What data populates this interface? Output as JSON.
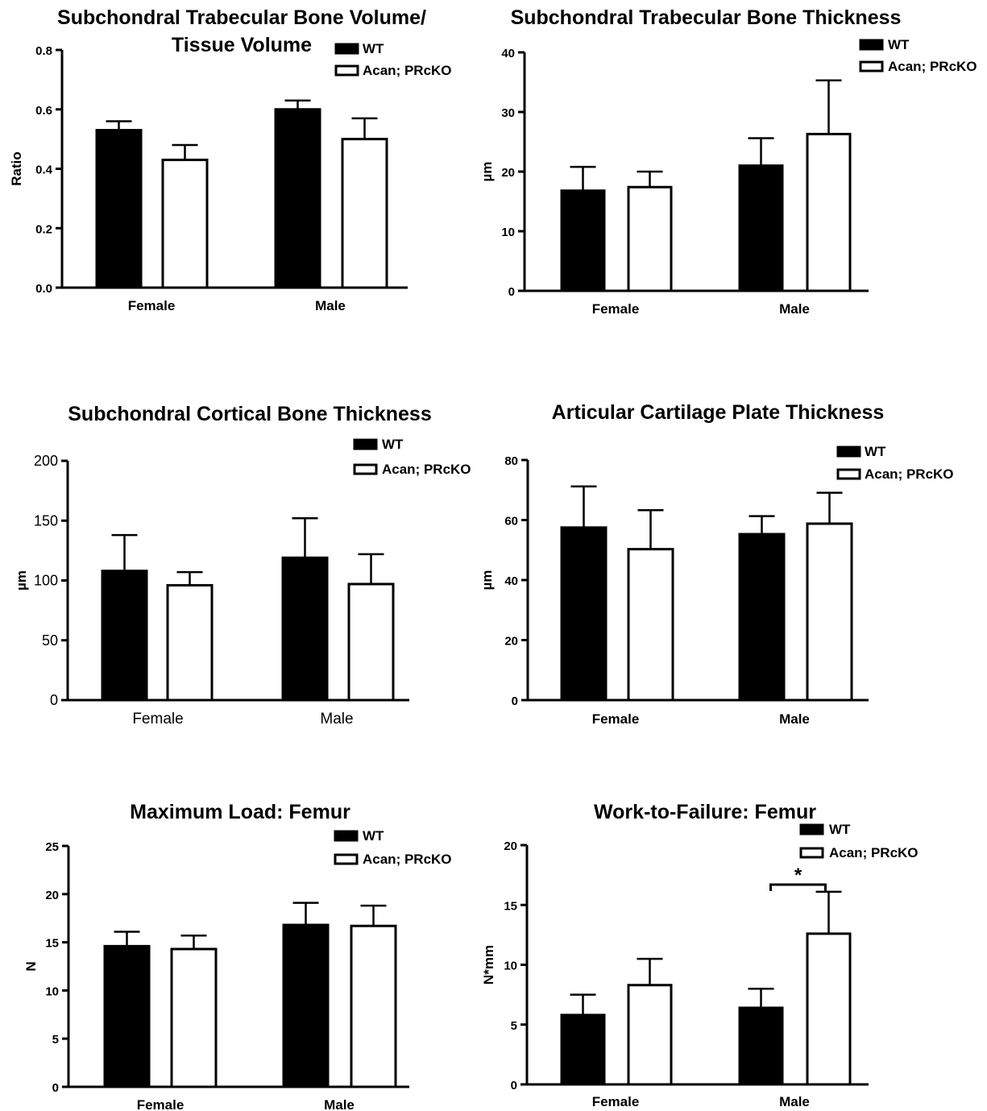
{
  "chart_data": [
    {
      "type": "bar",
      "title": [
        "Subchondral Trabecular Bone Volume/",
        "Tissue Volume"
      ],
      "ylabel": "Ratio",
      "categories": [
        "Female",
        "Male"
      ],
      "ylim": [
        0,
        0.8
      ],
      "yticks": [
        "0.0",
        "0.2",
        "0.4",
        "0.6",
        "0.8"
      ],
      "series": [
        {
          "name": "WT",
          "color": "#000000",
          "values": [
            0.53,
            0.6
          ],
          "errors": [
            0.03,
            0.03
          ]
        },
        {
          "name": "Acan; PRcKO",
          "color": "#ffffff",
          "values": [
            0.43,
            0.5
          ],
          "errors": [
            0.05,
            0.07
          ]
        }
      ],
      "legend": "top-right",
      "grid": false
    },
    {
      "type": "bar",
      "title": [
        "Subchondral Trabecular Bone Thickness"
      ],
      "ylabel": "µm",
      "categories": [
        "Female",
        "Male"
      ],
      "ylim": [
        0,
        40
      ],
      "yticks": [
        "0",
        "10",
        "20",
        "30",
        "40"
      ],
      "series": [
        {
          "name": "WT",
          "color": "#000000",
          "values": [
            16.8,
            21.0
          ],
          "errors": [
            4.0,
            4.6
          ]
        },
        {
          "name": "Acan; PRcKO",
          "color": "#ffffff",
          "values": [
            17.4,
            26.3
          ],
          "errors": [
            2.6,
            9.0
          ]
        }
      ],
      "legend": "top-right",
      "grid": false
    },
    {
      "type": "bar",
      "title": [
        "Subchondral Cortical Bone Thickness"
      ],
      "ylabel": "µm",
      "categories": [
        "Female",
        "Male"
      ],
      "ylim": [
        0,
        200
      ],
      "yticks": [
        "0",
        "50",
        "100",
        "150",
        "200"
      ],
      "series": [
        {
          "name": "WT",
          "color": "#000000",
          "values": [
            108,
            119
          ],
          "errors": [
            30,
            33
          ]
        },
        {
          "name": "Acan; PRcKO",
          "color": "#ffffff",
          "values": [
            96,
            97
          ],
          "errors": [
            11,
            25
          ]
        }
      ],
      "legend": "top-right",
      "grid": false
    },
    {
      "type": "bar",
      "title": [
        "Articular Cartilage Plate Thickness"
      ],
      "ylabel": "µm",
      "categories": [
        "Female",
        "Male"
      ],
      "ylim": [
        0,
        80
      ],
      "yticks": [
        "0",
        "20",
        "40",
        "60",
        "80"
      ],
      "series": [
        {
          "name": "WT",
          "color": "#000000",
          "values": [
            57.5,
            55.3
          ],
          "errors": [
            13.7,
            6.0
          ]
        },
        {
          "name": "Acan; PRcKO",
          "color": "#ffffff",
          "values": [
            50.3,
            58.8
          ],
          "errors": [
            13.0,
            10.3
          ]
        }
      ],
      "legend": "top-right",
      "grid": false
    },
    {
      "type": "bar",
      "title": [
        "Maximum Load: Femur"
      ],
      "ylabel": "N",
      "categories": [
        "Female",
        "Male"
      ],
      "ylim": [
        0,
        25
      ],
      "yticks": [
        "0",
        "5",
        "10",
        "15",
        "20",
        "25"
      ],
      "series": [
        {
          "name": "WT",
          "color": "#000000",
          "values": [
            14.6,
            16.8
          ],
          "errors": [
            1.5,
            2.3
          ]
        },
        {
          "name": "Acan; PRcKO",
          "color": "#ffffff",
          "values": [
            14.3,
            16.7
          ],
          "errors": [
            1.4,
            2.1
          ]
        }
      ],
      "legend": "top-right",
      "grid": false
    },
    {
      "type": "bar",
      "title": [
        "Work-to-Failure: Femur"
      ],
      "ylabel": "N*mm",
      "categories": [
        "Female",
        "Male"
      ],
      "ylim": [
        0,
        20
      ],
      "yticks": [
        "0",
        "5",
        "10",
        "15",
        "20"
      ],
      "series": [
        {
          "name": "WT",
          "color": "#000000",
          "values": [
            5.8,
            6.4
          ],
          "errors": [
            1.7,
            1.6
          ]
        },
        {
          "name": "Acan; PRcKO",
          "color": "#ffffff",
          "values": [
            8.3,
            12.6
          ],
          "errors": [
            2.2,
            3.5
          ]
        }
      ],
      "legend": "top-right",
      "grid": false,
      "annotations": [
        {
          "text": "*",
          "category": "Male",
          "between": [
            "WT",
            "Acan; PRcKO"
          ]
        }
      ]
    }
  ]
}
